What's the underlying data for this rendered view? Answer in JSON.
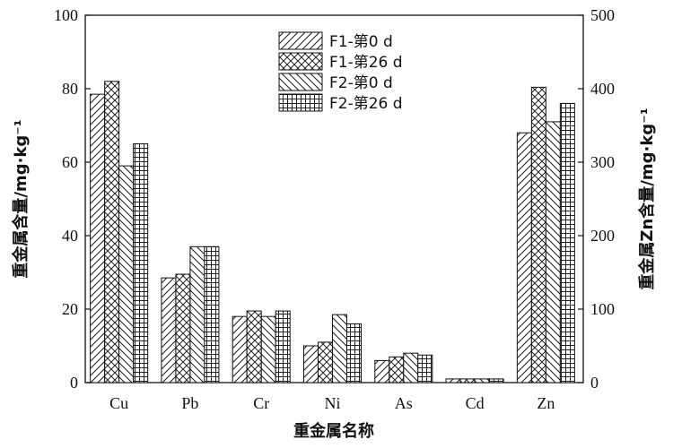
{
  "chart_data": {
    "type": "bar",
    "categories": [
      "Cu",
      "Pb",
      "Cr",
      "Ni",
      "As",
      "Cd",
      "Zn"
    ],
    "series": [
      {
        "name": "F1-第0 d",
        "values": [
          78.5,
          28.5,
          18.0,
          10.0,
          6.0,
          1.0,
          340
        ],
        "pattern": "diag-right"
      },
      {
        "name": "F1-第26 d",
        "values": [
          82.0,
          29.5,
          19.5,
          11.0,
          7.0,
          1.0,
          402
        ],
        "pattern": "cross-diag"
      },
      {
        "name": "F2-第0 d",
        "values": [
          59.0,
          37.0,
          18.0,
          18.5,
          8.0,
          1.0,
          355
        ],
        "pattern": "diag-left"
      },
      {
        "name": "F2-第26 d",
        "values": [
          65.0,
          37.0,
          19.5,
          16.0,
          7.5,
          1.0,
          380
        ],
        "pattern": "grid"
      }
    ],
    "right_axis_category": "Zn",
    "xlabel": "重金属名称",
    "ylabel_left": "重金属含量/mg·kg⁻¹",
    "ylabel_right": "重金属Zn含量/mg·kg⁻¹",
    "ylim_left": [
      0,
      100
    ],
    "ylim_right": [
      0,
      500
    ],
    "yticks_left": [
      "0",
      "20",
      "40",
      "60",
      "80",
      "100"
    ],
    "yticks_right": [
      "0",
      "100",
      "200",
      "300",
      "400",
      "500"
    ],
    "grid": false,
    "legend_position": "top-center"
  }
}
